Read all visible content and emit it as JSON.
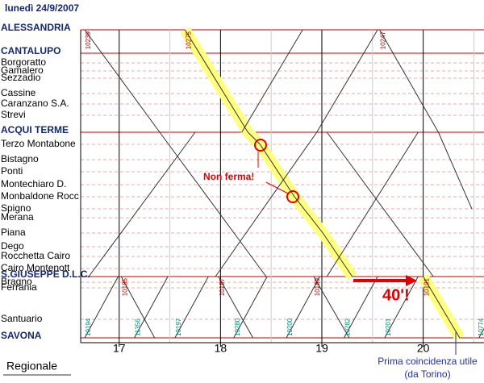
{
  "chart_data": {
    "type": "timetable",
    "title": "lunedì 24/9/2007",
    "stations": [
      {
        "name": "ALESSANDRIA",
        "major": true
      },
      {
        "name": "CANTALUPO",
        "major": true
      },
      {
        "name": "Borgoratto",
        "major": false
      },
      {
        "name": "Gamalero",
        "major": false
      },
      {
        "name": "Sezzadio",
        "major": false
      },
      {
        "name": "Cassine",
        "major": false
      },
      {
        "name": "Caranzano S.A.",
        "major": false
      },
      {
        "name": "Strevi",
        "major": false
      },
      {
        "name": "ACQUI TERME",
        "major": true
      },
      {
        "name": "Terzo Montabone",
        "major": false
      },
      {
        "name": "Bistagno",
        "major": false
      },
      {
        "name": "Ponti",
        "major": false
      },
      {
        "name": "Montechiaro D.",
        "major": false
      },
      {
        "name": "Monbaldone Rocc",
        "major": false
      },
      {
        "name": "Spigno",
        "major": false
      },
      {
        "name": "Merana",
        "major": false
      },
      {
        "name": "Piana",
        "major": false
      },
      {
        "name": "Dego",
        "major": false
      },
      {
        "name": "Rocchetta Cairo",
        "major": false
      },
      {
        "name": "Cairo Montenott",
        "major": false
      },
      {
        "name": "S.GIUSEPPE D.L.C.",
        "major": true
      },
      {
        "name": "Bragno",
        "major": false
      },
      {
        "name": "Ferrania",
        "major": false
      },
      {
        "name": "Santuario",
        "major": false
      },
      {
        "name": "SAVONA",
        "major": true
      }
    ],
    "xlim": [
      16.62,
      20.6
    ],
    "xticks": [
      17,
      18,
      19,
      20
    ],
    "line_color": "#333333",
    "highlight_color": "#ffff80",
    "trains": [
      {
        "name": "10239",
        "color": "#a00000",
        "stations": [
          0,
          8,
          20
        ],
        "times": [
          16.66,
          17.4,
          18.45
        ]
      },
      {
        "name": "10275",
        "color": "#a00000",
        "highlight": true,
        "stations": [
          0,
          8,
          9,
          13,
          16,
          20
        ],
        "times": [
          17.65,
          18.27,
          18.39,
          18.73,
          19.01,
          19.3
        ]
      },
      {
        "name": "10247",
        "color": "#a00000",
        "stations": [
          0,
          8,
          14
        ],
        "times": [
          19.57,
          20.15,
          20.48
        ]
      },
      {
        "stations": [
          8,
          0
        ],
        "times": [
          18.21,
          18.81
        ]
      },
      {
        "stations": [
          20,
          8
        ],
        "times": [
          16.7,
          17.75
        ]
      },
      {
        "stations": [
          20,
          8,
          0
        ],
        "times": [
          17.95,
          18.95,
          19.55
        ]
      },
      {
        "stations": [
          20,
          8
        ],
        "times": [
          19.05,
          19.95
        ]
      },
      {
        "stations": [
          8,
          20
        ],
        "times": [
          19.05,
          20.1
        ]
      },
      {
        "name": "10185",
        "color": "#a00000",
        "stations": [
          20,
          24
        ],
        "times": [
          17.02,
          17.35
        ]
      },
      {
        "name": "10187",
        "color": "#a00000",
        "stations": [
          20,
          24
        ],
        "times": [
          17.98,
          18.32
        ]
      },
      {
        "name": "10189",
        "color": "#a00000",
        "stations": [
          20,
          24
        ],
        "times": [
          18.92,
          19.27
        ]
      },
      {
        "name": "10191",
        "color": "#a00000",
        "highlight": true,
        "stations": [
          20,
          24
        ],
        "times": [
          20.0,
          20.36
        ]
      },
      {
        "name": "10194",
        "color": "#008877",
        "stations": [
          24,
          20
        ],
        "times": [
          16.66,
          16.99
        ]
      },
      {
        "name": "11356",
        "color": "#008877",
        "stations": [
          24,
          20
        ],
        "times": [
          17.15,
          17.48
        ]
      },
      {
        "name": "10197",
        "color": "#008877",
        "stations": [
          24,
          20
        ],
        "times": [
          17.55,
          17.88
        ]
      },
      {
        "name": "10280",
        "color": "#008877",
        "stations": [
          24,
          20
        ],
        "times": [
          18.13,
          18.46
        ]
      },
      {
        "name": "10200",
        "color": "#008877",
        "stations": [
          24,
          20
        ],
        "times": [
          18.65,
          18.98
        ]
      },
      {
        "name": "10282",
        "color": "#008877",
        "stations": [
          24,
          20
        ],
        "times": [
          19.22,
          19.55
        ]
      },
      {
        "name": "10201",
        "color": "#008877",
        "stations": [
          24,
          20
        ],
        "times": [
          19.62,
          19.95
        ]
      },
      {
        "name": "10774",
        "color": "#008877",
        "stations": [
          24,
          20
        ],
        "times": [
          20.55,
          20.88
        ]
      }
    ],
    "annotations": {
      "no_stop": "Non ferma!",
      "wait": "40'!",
      "connection": "Prima coincidenza utile",
      "connection_note": "(da Torino)"
    },
    "legend": "Regionale"
  }
}
